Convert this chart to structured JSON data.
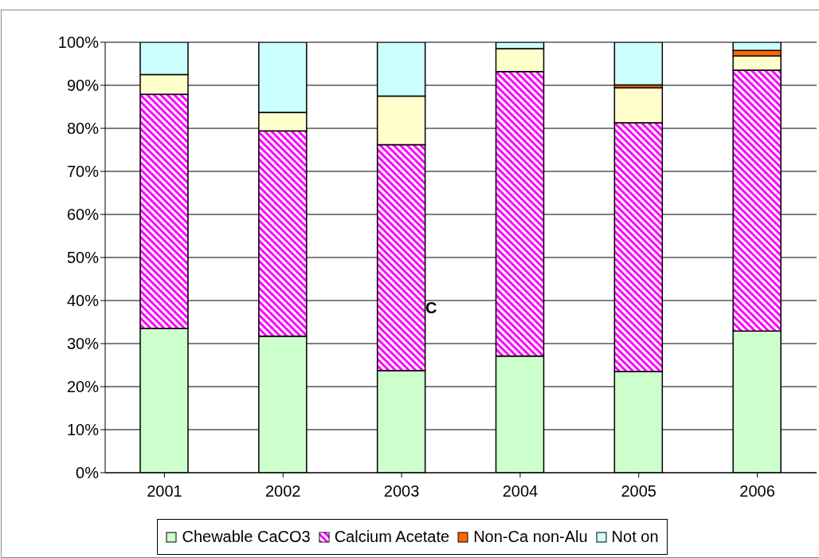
{
  "chart_data": {
    "type": "bar",
    "stacked": true,
    "categories": [
      "2001",
      "2002",
      "2003",
      "2004",
      "2005",
      "2006"
    ],
    "series": [
      {
        "name": "Chewable CaCO3",
        "color": "#ccffcc",
        "values": [
          33.5,
          31.7,
          23.7,
          27.1,
          23.5,
          32.9
        ]
      },
      {
        "name": "Calcium Acetate",
        "color": "#ff00ff",
        "values": [
          54.4,
          47.7,
          52.5,
          66.1,
          57.8,
          60.6
        ]
      },
      {
        "color": "#ffffcc",
        "values": [
          4.6,
          4.3,
          11.3,
          5.3,
          8.1,
          3.3
        ]
      },
      {
        "name": "Non-Ca non-Alu",
        "color": "#ff6600",
        "values": [
          0,
          0,
          0,
          0,
          0.7,
          1.3
        ]
      },
      {
        "name": "Not on",
        "color": "#ccffff",
        "values": [
          7.5,
          16.3,
          12.5,
          1.5,
          9.9,
          1.9
        ]
      }
    ],
    "ylim": [
      0,
      100
    ],
    "yticks": [
      {
        "value": 0,
        "label": "0%"
      },
      {
        "value": 10,
        "label": "10%"
      },
      {
        "value": 20,
        "label": "20%"
      },
      {
        "value": 30,
        "label": "30%"
      },
      {
        "value": 40,
        "label": "40%"
      },
      {
        "value": 50,
        "label": "50%"
      },
      {
        "value": 60,
        "label": "60%"
      },
      {
        "value": 70,
        "label": "70%"
      },
      {
        "value": 80,
        "label": "80%"
      },
      {
        "value": 90,
        "label": "90%"
      },
      {
        "value": 100,
        "label": "100%"
      }
    ],
    "grid": "y",
    "legend": "bottom",
    "annotations": [
      "C"
    ]
  }
}
